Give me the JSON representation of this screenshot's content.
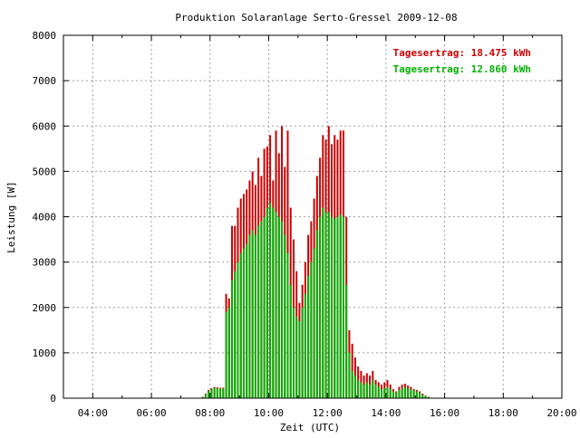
{
  "chart_data": {
    "type": "bar",
    "title": "Produktion Solaranlage Serto-Gressel 2009-12-08",
    "xlabel": "Zeit (UTC)",
    "ylabel": "Leistung [W]",
    "xlim": [
      3.0,
      20.0
    ],
    "ylim": [
      0,
      8000
    ],
    "x_ticks": [
      4,
      6,
      8,
      10,
      12,
      14,
      16,
      18,
      20
    ],
    "x_tick_labels": [
      "04:00",
      "06:00",
      "08:00",
      "10:00",
      "12:00",
      "14:00",
      "16:00",
      "18:00",
      "20:00"
    ],
    "y_ticks": [
      0,
      1000,
      2000,
      3000,
      4000,
      5000,
      6000,
      7000,
      8000
    ],
    "y_tick_labels": [
      "0",
      "1000",
      "2000",
      "3000",
      "4000",
      "5000",
      "6000",
      "7000",
      "8000"
    ],
    "grid": true,
    "legend_position": "top-right",
    "colors": {
      "series1": "#cc0000",
      "series2": "#00b000"
    },
    "legend": [
      {
        "label": "Tagesertrag: 18.475 kWh",
        "color": "#cc0000"
      },
      {
        "label": "Tagesertrag: 12.860 kWh",
        "color": "#00b000"
      }
    ],
    "x": [
      7.75,
      7.85,
      7.95,
      8.05,
      8.15,
      8.25,
      8.35,
      8.45,
      8.55,
      8.65,
      8.75,
      8.85,
      8.95,
      9.05,
      9.15,
      9.25,
      9.35,
      9.45,
      9.55,
      9.65,
      9.75,
      9.85,
      9.95,
      10.05,
      10.15,
      10.25,
      10.35,
      10.45,
      10.55,
      10.65,
      10.75,
      10.85,
      10.95,
      11.05,
      11.15,
      11.25,
      11.35,
      11.45,
      11.55,
      11.65,
      11.75,
      11.85,
      11.95,
      12.05,
      12.15,
      12.25,
      12.35,
      12.45,
      12.55,
      12.65,
      12.75,
      12.85,
      12.95,
      13.05,
      13.15,
      13.25,
      13.35,
      13.45,
      13.55,
      13.65,
      13.75,
      13.85,
      13.95,
      14.05,
      14.15,
      14.25,
      14.35,
      14.45,
      14.55,
      14.65,
      14.75,
      14.85,
      14.95,
      15.05,
      15.15,
      15.25,
      15.35,
      15.45,
      15.55
    ],
    "series": [
      {
        "values": [
          30,
          100,
          180,
          220,
          250,
          240,
          230,
          230,
          2300,
          2200,
          3800,
          3800,
          4200,
          4400,
          4500,
          4600,
          4800,
          5000,
          4700,
          5300,
          4900,
          5500,
          5550,
          5800,
          4800,
          5900,
          5400,
          6000,
          5100,
          5900,
          4200,
          3500,
          2800,
          2100,
          2500,
          3000,
          3600,
          3900,
          4400,
          4900,
          5300,
          5800,
          5700,
          6000,
          5600,
          5800,
          5700,
          5900,
          5900,
          4000,
          1500,
          1200,
          900,
          700,
          600,
          500,
          550,
          500,
          600,
          400,
          350,
          300,
          350,
          400,
          300,
          200,
          150,
          250,
          300,
          320,
          280,
          250,
          200,
          180,
          150,
          100,
          60,
          30,
          10
        ]
      },
      {
        "values": [
          20,
          80,
          150,
          200,
          230,
          220,
          210,
          210,
          1900,
          2000,
          2600,
          2800,
          3000,
          3200,
          3300,
          3400,
          3600,
          3700,
          3600,
          3800,
          3900,
          4000,
          4200,
          4300,
          4200,
          4100,
          4000,
          3900,
          3600,
          3200,
          2500,
          2000,
          1800,
          1700,
          2000,
          2300,
          2700,
          3000,
          3300,
          3700,
          4000,
          4200,
          4100,
          4100,
          4000,
          3950,
          4000,
          4050,
          4000,
          2500,
          1000,
          600,
          500,
          400,
          350,
          300,
          350,
          300,
          400,
          300,
          250,
          200,
          220,
          250,
          200,
          150,
          120,
          180,
          220,
          250,
          220,
          200,
          170,
          150,
          120,
          80,
          50,
          25,
          8
        ]
      }
    ]
  }
}
